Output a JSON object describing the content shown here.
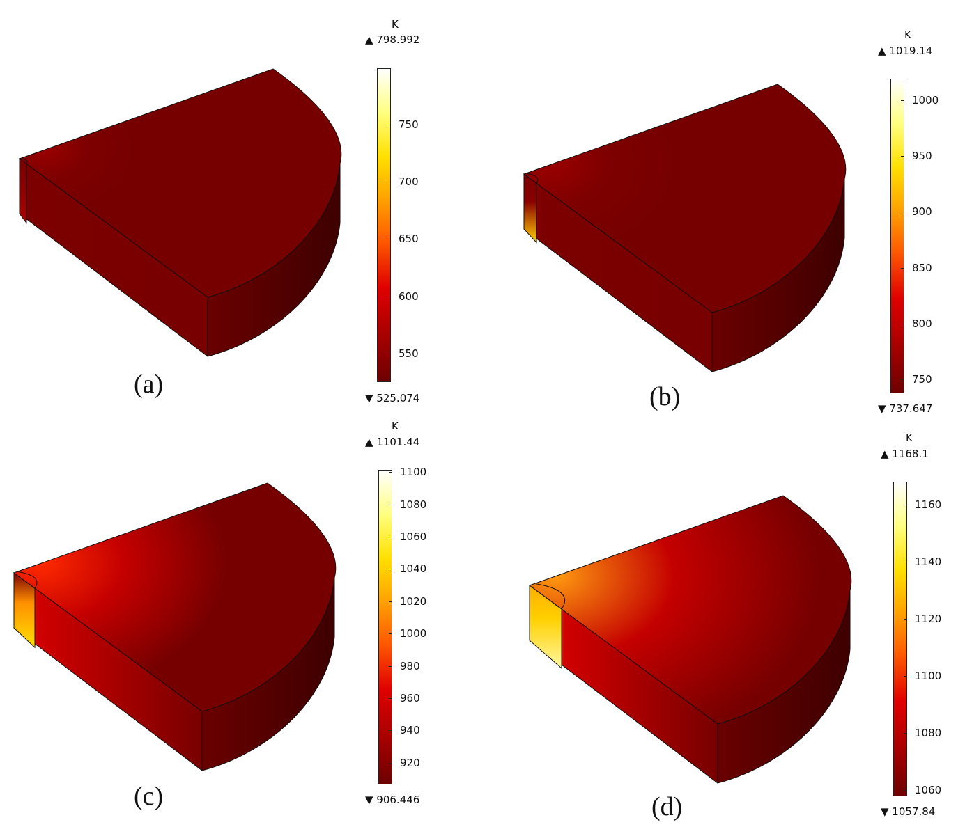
{
  "panels": [
    {
      "id": "a",
      "caption": "(a)",
      "unit": "K",
      "max_label": "▲ 798.992",
      "min_label": "▼ 525.074",
      "min": 525.074,
      "max": 798.992,
      "ticks": [
        "750",
        "700",
        "650",
        "600",
        "550"
      ],
      "hot_intensity": 0.05
    },
    {
      "id": "b",
      "caption": "(b)",
      "unit": "K",
      "max_label": "▲ 1019.14",
      "min_label": "▼ 737.647",
      "min": 737.647,
      "max": 1019.14,
      "ticks": [
        "1000",
        "950",
        "900",
        "850",
        "800",
        "750"
      ],
      "hot_intensity": 0.25
    },
    {
      "id": "c",
      "caption": "(c)",
      "unit": "K",
      "max_label": "▲ 1101.44",
      "min_label": "▼ 906.446",
      "min": 906.446,
      "max": 1101.44,
      "ticks": [
        "1100",
        "1080",
        "1060",
        "1040",
        "1020",
        "1000",
        "980",
        "960",
        "940",
        "920"
      ],
      "hot_intensity": 0.55
    },
    {
      "id": "d",
      "caption": "(d)",
      "unit": "K",
      "max_label": "▲ 1168.1",
      "min_label": "▼ 1057.84",
      "min": 1057.84,
      "max": 1168.1,
      "ticks": [
        "1160",
        "1140",
        "1120",
        "1100",
        "1080",
        "1060"
      ],
      "hot_intensity": 0.95
    }
  ]
}
